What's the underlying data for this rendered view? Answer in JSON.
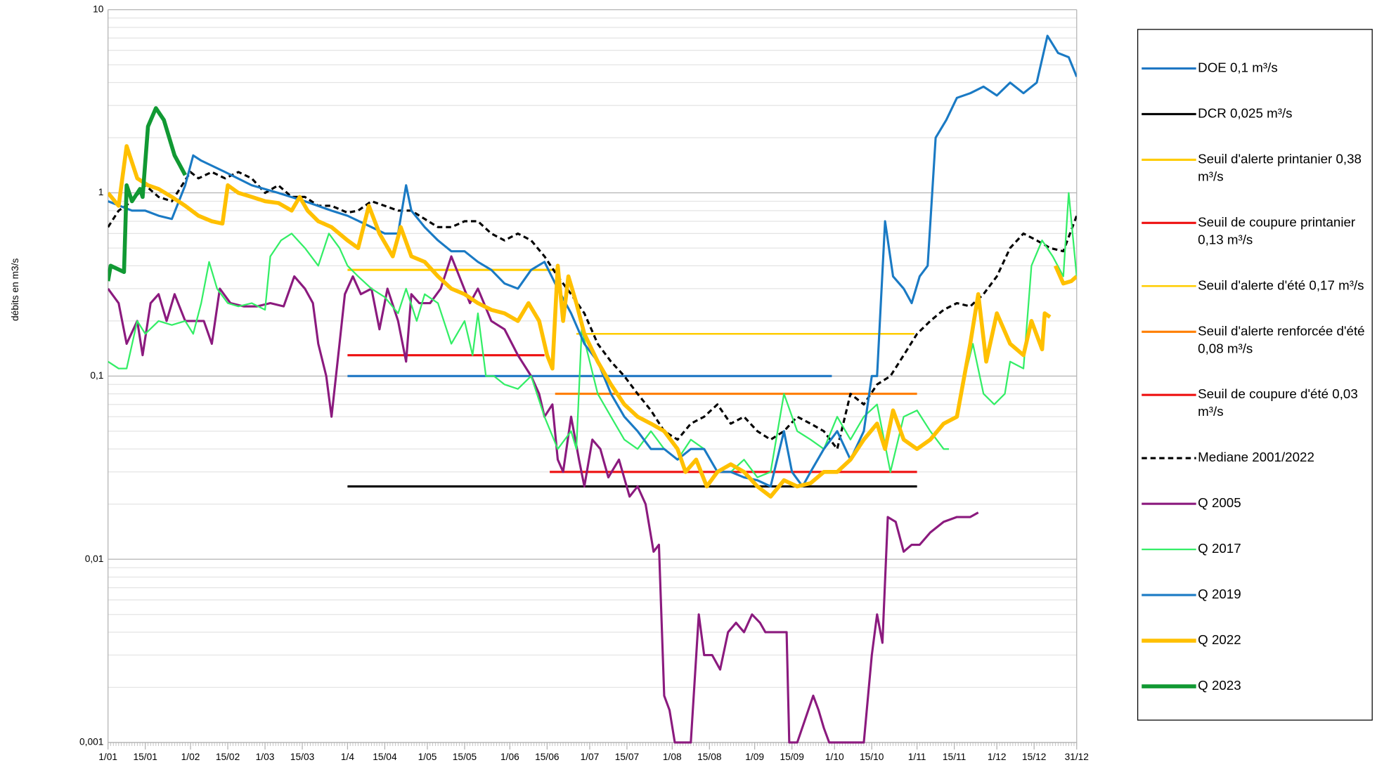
{
  "chart_data": {
    "type": "line",
    "y_label": "débits en m3/s",
    "log_y": true,
    "grid": true,
    "minor_grid": true,
    "legend_position": "right",
    "xlim": [
      1,
      365
    ],
    "ylim": [
      0.001,
      10
    ],
    "xticks": [
      {
        "value": 1,
        "label": "1/01"
      },
      {
        "value": 15,
        "label": "15/01"
      },
      {
        "value": 32,
        "label": "1/02"
      },
      {
        "value": 46,
        "label": "15/02"
      },
      {
        "value": 60,
        "label": "1/03"
      },
      {
        "value": 74,
        "label": "15/03"
      },
      {
        "value": 91,
        "label": "1/4"
      },
      {
        "value": 105,
        "label": "15/04"
      },
      {
        "value": 121,
        "label": "1/05"
      },
      {
        "value": 135,
        "label": "15/05"
      },
      {
        "value": 152,
        "label": "1/06"
      },
      {
        "value": 166,
        "label": "15/06"
      },
      {
        "value": 182,
        "label": "1/07"
      },
      {
        "value": 196,
        "label": "15/07"
      },
      {
        "value": 213,
        "label": "1/08"
      },
      {
        "value": 227,
        "label": "15/08"
      },
      {
        "value": 244,
        "label": "1/09"
      },
      {
        "value": 258,
        "label": "15/09"
      },
      {
        "value": 274,
        "label": "1/10"
      },
      {
        "value": 288,
        "label": "15/10"
      },
      {
        "value": 305,
        "label": "1/11"
      },
      {
        "value": 319,
        "label": "15/11"
      },
      {
        "value": 335,
        "label": "1/12"
      },
      {
        "value": 349,
        "label": "15/12"
      },
      {
        "value": 365,
        "label": "31/12"
      }
    ],
    "yticks": [
      {
        "value": 0.001,
        "label": "0,001"
      },
      {
        "value": 0.01,
        "label": "0,01"
      },
      {
        "value": 0.1,
        "label": "0,1"
      },
      1,
      10
    ],
    "series": [
      {
        "name": "DOE 0,1 m³/s",
        "color": "#1f77c4",
        "line_width": 2.5,
        "x": [
          91,
          273
        ],
        "values": [
          0.1,
          0.1
        ]
      },
      {
        "name": "DCR 0,025 m³/s",
        "color": "#000000",
        "line_width": 2.5,
        "x": [
          91,
          305
        ],
        "values": [
          0.025,
          0.025
        ]
      },
      {
        "name": "Seuil d'alerte printanier 0,38 m³/s",
        "color": "#ffcc00",
        "line_width": 2.5,
        "x": [
          91,
          170
        ],
        "values": [
          0.38,
          0.38
        ]
      },
      {
        "name": "Seuil de coupure printanier 0,13 m³/s",
        "color": "#ee1111",
        "line_width": 2.5,
        "x": [
          91,
          165
        ],
        "values": [
          0.13,
          0.13
        ]
      },
      {
        "name": "Seuil d'alerte d'été 0,17 m³/s",
        "color": "#ffcc00",
        "line_width": 2,
        "x": [
          177,
          304
        ],
        "values": [
          0.17,
          0.17
        ]
      },
      {
        "name": "Seuil d'alerte renforcée d'été 0,08 m³/s",
        "color": "#ff7f00",
        "line_width": 2.5,
        "x": [
          169,
          305
        ],
        "values": [
          0.08,
          0.08
        ]
      },
      {
        "name": "Seuil de coupure d'été 0,03 m³/s",
        "color": "#ee1111",
        "line_width": 2.5,
        "x": [
          167,
          305
        ],
        "values": [
          0.03,
          0.03
        ]
      },
      {
        "name": "Mediane 2001/2022",
        "color": "#000000",
        "line_width": 2.5,
        "dashed": true,
        "x": [
          1,
          5,
          10,
          15,
          20,
          25,
          32,
          35,
          40,
          45,
          50,
          55,
          60,
          65,
          70,
          75,
          80,
          85,
          91,
          95,
          100,
          105,
          110,
          115,
          120,
          125,
          130,
          135,
          140,
          145,
          150,
          155,
          160,
          165,
          170,
          175,
          180,
          185,
          190,
          195,
          200,
          205,
          210,
          215,
          220,
          225,
          230,
          235,
          240,
          245,
          250,
          255,
          260,
          265,
          270,
          275,
          280,
          285,
          290,
          295,
          300,
          305,
          310,
          315,
          320,
          325,
          330,
          335,
          340,
          345,
          350,
          355,
          360,
          365
        ],
        "values": [
          0.65,
          0.8,
          0.9,
          1.1,
          0.95,
          0.9,
          1.3,
          1.2,
          1.3,
          1.2,
          1.3,
          1.2,
          1.0,
          1.1,
          0.95,
          0.95,
          0.85,
          0.85,
          0.78,
          0.8,
          0.9,
          0.85,
          0.8,
          0.8,
          0.72,
          0.65,
          0.65,
          0.7,
          0.7,
          0.6,
          0.55,
          0.6,
          0.55,
          0.45,
          0.35,
          0.28,
          0.22,
          0.15,
          0.12,
          0.1,
          0.08,
          0.065,
          0.05,
          0.045,
          0.055,
          0.06,
          0.07,
          0.055,
          0.06,
          0.05,
          0.045,
          0.05,
          0.06,
          0.055,
          0.05,
          0.04,
          0.08,
          0.07,
          0.09,
          0.1,
          0.13,
          0.17,
          0.2,
          0.23,
          0.25,
          0.24,
          0.28,
          0.35,
          0.5,
          0.6,
          0.55,
          0.5,
          0.48,
          0.75
        ]
      },
      {
        "name": "Q 2005",
        "color": "#8b1a7e",
        "line_width": 2.5,
        "x": [
          1,
          5,
          8,
          12,
          14,
          17,
          20,
          23,
          26,
          30,
          33,
          37,
          40,
          43,
          47,
          52,
          57,
          62,
          67,
          71,
          75,
          78,
          80,
          83,
          85,
          88,
          90,
          93,
          96,
          100,
          103,
          106,
          110,
          113,
          115,
          118,
          122,
          126,
          130,
          133,
          137,
          140,
          145,
          150,
          155,
          160,
          163,
          165,
          168,
          170,
          172,
          175,
          178,
          180,
          183,
          186,
          189,
          193,
          197,
          200,
          203,
          206,
          208,
          210,
          212,
          214,
          218,
          220,
          223,
          225,
          228,
          231,
          234,
          237,
          240,
          243,
          246,
          248,
          252,
          256,
          257,
          260,
          266,
          268,
          270,
          272,
          280,
          285,
          288,
          290,
          292,
          294,
          297,
          300,
          303,
          306,
          310,
          315,
          320,
          325,
          328
        ],
        "values": [
          0.3,
          0.25,
          0.15,
          0.2,
          0.13,
          0.25,
          0.28,
          0.2,
          0.28,
          0.2,
          0.2,
          0.2,
          0.15,
          0.3,
          0.25,
          0.24,
          0.24,
          0.25,
          0.24,
          0.35,
          0.3,
          0.25,
          0.15,
          0.1,
          0.06,
          0.15,
          0.28,
          0.35,
          0.28,
          0.3,
          0.18,
          0.3,
          0.2,
          0.12,
          0.28,
          0.25,
          0.25,
          0.3,
          0.45,
          0.35,
          0.25,
          0.3,
          0.2,
          0.18,
          0.13,
          0.1,
          0.08,
          0.06,
          0.07,
          0.035,
          0.03,
          0.06,
          0.035,
          0.025,
          0.045,
          0.04,
          0.028,
          0.035,
          0.022,
          0.025,
          0.02,
          0.011,
          0.012,
          0.0018,
          0.0015,
          0.001,
          0.001,
          0.001,
          0.005,
          0.003,
          0.003,
          0.0025,
          0.004,
          0.0045,
          0.004,
          0.005,
          0.0045,
          0.004,
          0.004,
          0.004,
          0.001,
          0.001,
          0.0018,
          0.0015,
          0.0012,
          0.001,
          0.001,
          0.001,
          0.003,
          0.005,
          0.0035,
          0.017,
          0.016,
          0.011,
          0.012,
          0.012,
          0.014,
          0.016,
          0.017,
          0.017,
          0.018
        ]
      },
      {
        "name": "Q 2017",
        "color": "#33ee66",
        "line_width": 1.8,
        "x": [
          1,
          5,
          8,
          12,
          15,
          20,
          25,
          30,
          33,
          36,
          39,
          42,
          46,
          50,
          55,
          60,
          62,
          66,
          70,
          75,
          80,
          84,
          88,
          91,
          95,
          100,
          105,
          110,
          113,
          117,
          120,
          125,
          130,
          135,
          138,
          140,
          143,
          146,
          150,
          155,
          160,
          165,
          170,
          175,
          177,
          179,
          182,
          185,
          190,
          195,
          200,
          205,
          210,
          215,
          220,
          225,
          230,
          235,
          240,
          245,
          250,
          255,
          260,
          265,
          270,
          275,
          280,
          285,
          290,
          295,
          300,
          305,
          310,
          315,
          317,
          320,
          323,
          326,
          330,
          334,
          338,
          340,
          345,
          348,
          352,
          356,
          360,
          362,
          365
        ],
        "values": [
          0.12,
          0.11,
          0.11,
          0.2,
          0.17,
          0.2,
          0.19,
          0.2,
          0.17,
          0.25,
          0.42,
          0.3,
          0.25,
          0.24,
          0.25,
          0.23,
          0.45,
          0.55,
          0.6,
          0.5,
          0.4,
          0.6,
          0.5,
          0.4,
          0.35,
          0.3,
          0.27,
          0.22,
          0.3,
          0.2,
          0.28,
          0.25,
          0.15,
          0.2,
          0.13,
          0.22,
          0.1,
          0.1,
          0.09,
          0.085,
          0.1,
          0.06,
          0.04,
          0.05,
          0.04,
          0.18,
          0.12,
          0.08,
          0.06,
          0.045,
          0.04,
          0.05,
          0.04,
          0.035,
          0.045,
          0.04,
          0.03,
          0.03,
          0.035,
          0.028,
          0.03,
          0.08,
          0.05,
          0.045,
          0.04,
          0.06,
          0.045,
          0.06,
          0.07,
          0.03,
          0.06,
          0.065,
          0.05,
          0.04,
          0.04,
          null,
          0.1,
          0.15,
          0.08,
          0.07,
          0.08,
          0.12,
          0.11,
          0.4,
          0.55,
          0.45,
          0.35,
          1.0,
          0.35
        ]
      },
      {
        "name": "Q 2019",
        "color": "#1a7ac4",
        "line_width": 2.5,
        "x": [
          1,
          10,
          15,
          20,
          25,
          30,
          33,
          36,
          45,
          55,
          65,
          75,
          85,
          91,
          100,
          105,
          110,
          113,
          115,
          120,
          125,
          130,
          135,
          140,
          145,
          150,
          155,
          160,
          165,
          170,
          175,
          180,
          185,
          190,
          195,
          200,
          205,
          210,
          215,
          220,
          225,
          230,
          235,
          240,
          245,
          250,
          255,
          258,
          262,
          265,
          270,
          275,
          280,
          285,
          288,
          290,
          293,
          296,
          300,
          303,
          306,
          309,
          312,
          316,
          320,
          325,
          330,
          335,
          340,
          345,
          350,
          354,
          358,
          362,
          365
        ],
        "values": [
          0.9,
          0.8,
          0.8,
          0.75,
          0.72,
          1.1,
          1.6,
          1.5,
          1.3,
          1.1,
          1.0,
          0.9,
          0.8,
          0.75,
          0.65,
          0.6,
          0.6,
          1.1,
          0.8,
          0.65,
          0.55,
          0.48,
          0.48,
          0.42,
          0.38,
          0.32,
          0.3,
          0.38,
          0.42,
          0.3,
          0.22,
          0.15,
          0.12,
          0.08,
          0.06,
          0.05,
          0.04,
          0.04,
          0.035,
          0.04,
          0.04,
          0.03,
          0.03,
          0.028,
          0.027,
          0.025,
          0.05,
          0.03,
          0.025,
          0.03,
          0.04,
          0.05,
          0.035,
          0.05,
          0.1,
          0.1,
          0.7,
          0.35,
          0.3,
          0.25,
          0.35,
          0.4,
          2.0,
          2.5,
          3.3,
          3.5,
          3.8,
          3.4,
          4.0,
          3.5,
          4.0,
          7.2,
          5.8,
          5.5,
          4.3
        ]
      },
      {
        "name": "Q 2022",
        "color": "#ffc000",
        "line_width": 4.5,
        "x": [
          1,
          5,
          8,
          12,
          16,
          20,
          25,
          30,
          35,
          40,
          44,
          46,
          50,
          55,
          60,
          65,
          70,
          73,
          76,
          80,
          85,
          91,
          95,
          99,
          103,
          108,
          111,
          115,
          120,
          125,
          130,
          135,
          140,
          145,
          150,
          155,
          159,
          163,
          166,
          168,
          170,
          172,
          174,
          177,
          180,
          185,
          190,
          195,
          200,
          205,
          210,
          215,
          218,
          222,
          226,
          230,
          235,
          240,
          245,
          250,
          255,
          260,
          265,
          270,
          275,
          280,
          285,
          290,
          293,
          296,
          300,
          305,
          310,
          315,
          320,
          325,
          328,
          331,
          335,
          340,
          345,
          348,
          352,
          353,
          355,
          356,
          357,
          360,
          363,
          365
        ],
        "values": [
          1.0,
          0.85,
          1.8,
          1.2,
          1.1,
          1.05,
          0.95,
          0.85,
          0.75,
          0.7,
          0.68,
          1.1,
          1.0,
          0.95,
          0.9,
          0.88,
          0.8,
          0.95,
          0.8,
          0.7,
          0.65,
          0.55,
          0.5,
          0.85,
          0.6,
          0.45,
          0.65,
          0.45,
          0.42,
          0.35,
          0.3,
          0.28,
          0.25,
          0.23,
          0.22,
          0.2,
          0.25,
          0.2,
          0.13,
          0.11,
          0.4,
          0.2,
          0.35,
          0.25,
          0.17,
          0.12,
          0.09,
          0.07,
          0.06,
          0.055,
          0.05,
          0.04,
          0.03,
          0.035,
          0.025,
          0.03,
          0.033,
          0.03,
          0.025,
          0.022,
          0.027,
          0.025,
          0.026,
          0.03,
          0.03,
          0.035,
          0.045,
          0.055,
          0.04,
          0.065,
          0.045,
          0.04,
          0.045,
          0.055,
          0.06,
          0.15,
          0.28,
          0.12,
          0.22,
          0.15,
          0.13,
          0.2,
          0.14,
          0.22,
          0.21,
          null,
          0.4,
          0.32,
          0.33,
          0.35
        ]
      },
      {
        "name": "Q 2023",
        "color": "#119933",
        "line_width": 4.5,
        "x": [
          1,
          2,
          7,
          8,
          10,
          13,
          14,
          16,
          19,
          22,
          26,
          30
        ],
        "values": [
          0.33,
          0.4,
          0.37,
          1.1,
          0.9,
          1.05,
          0.95,
          2.3,
          2.9,
          2.5,
          1.6,
          1.25
        ]
      }
    ]
  }
}
